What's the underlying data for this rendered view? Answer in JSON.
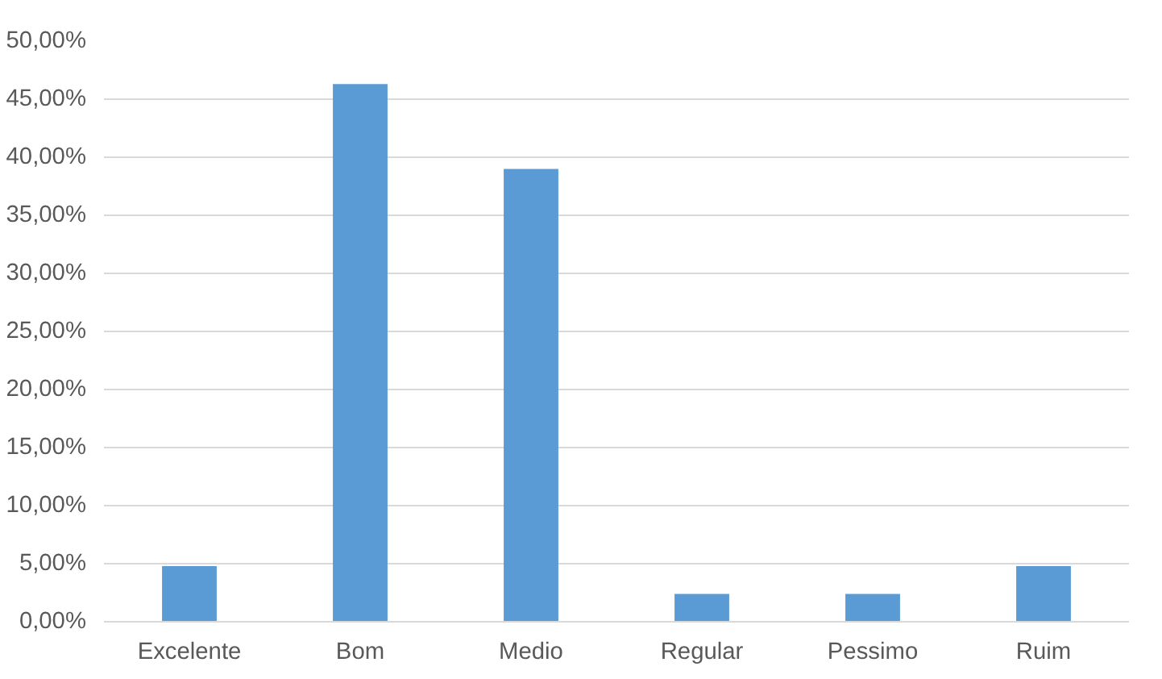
{
  "chart_data": {
    "type": "bar",
    "categories": [
      "Excelente",
      "Bom",
      "Medio",
      "Regular",
      "Pessimo",
      "Ruim"
    ],
    "values": [
      4.8,
      46.3,
      39.0,
      2.4,
      2.4,
      4.8
    ],
    "color": "#5b9bd5",
    "ylim": [
      0,
      50
    ],
    "yticks": [
      {
        "value": 0,
        "label": "0,00%"
      },
      {
        "value": 5,
        "label": "5,00%"
      },
      {
        "value": 10,
        "label": "10,00%"
      },
      {
        "value": 15,
        "label": "15,00%"
      },
      {
        "value": 20,
        "label": "20,00%"
      },
      {
        "value": 25,
        "label": "25,00%"
      },
      {
        "value": 30,
        "label": "30,00%"
      },
      {
        "value": 35,
        "label": "35,00%"
      },
      {
        "value": 40,
        "label": "40,00%"
      },
      {
        "value": 45,
        "label": "45,00%"
      },
      {
        "value": 50,
        "label": "50,00%"
      }
    ],
    "grid": "y"
  }
}
